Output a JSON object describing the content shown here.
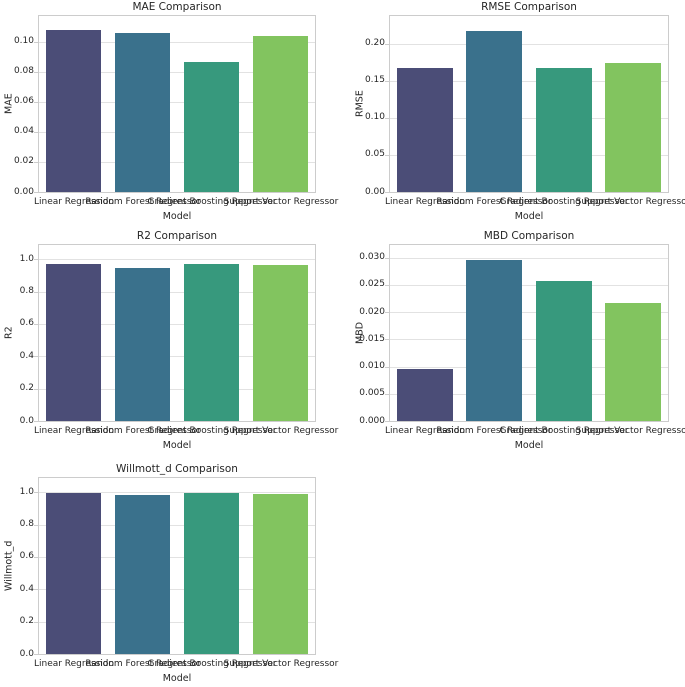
{
  "figure": {
    "background": "#ffffff",
    "text_color": "#262626",
    "grid_color": "#e2e2e2",
    "frame_color": "#cccccc",
    "bar_palette": [
      "#4b4d77",
      "#3a718c",
      "#37997d",
      "#82c45f"
    ]
  },
  "chart_data": [
    {
      "type": "bar",
      "title": "MAE Comparison",
      "xlabel": "Model",
      "ylabel": "MAE",
      "categories": [
        "Linear Regression",
        "Random Forest Regressor",
        "Gradient Boosting Regressor",
        "Support Vector Regressor"
      ],
      "values": [
        0.108,
        0.106,
        0.0865,
        0.1035
      ],
      "ylim": [
        0,
        0.117
      ],
      "yticks": [
        0,
        0.02,
        0.04,
        0.06,
        0.08,
        0.1
      ],
      "ytick_labels": [
        "0.00",
        "0.02",
        "0.04",
        "0.06",
        "0.08",
        "0.10"
      ],
      "grid": true,
      "legend": false
    },
    {
      "type": "bar",
      "title": "RMSE Comparison",
      "xlabel": "Model",
      "ylabel": "RMSE",
      "categories": [
        "Linear Regression",
        "Random Forest Regressor",
        "Gradient Boosting Regressor",
        "Support Vector Regressor"
      ],
      "values": [
        0.168,
        0.2175,
        0.167,
        0.1735
      ],
      "ylim": [
        0,
        0.2375
      ],
      "yticks": [
        0,
        0.05,
        0.1,
        0.15,
        0.2
      ],
      "ytick_labels": [
        "0.00",
        "0.05",
        "0.10",
        "0.15",
        "0.20"
      ],
      "grid": true,
      "legend": false
    },
    {
      "type": "bar",
      "title": "R2 Comparison",
      "xlabel": "Model",
      "ylabel": "R2",
      "categories": [
        "Linear Regression",
        "Random Forest Regressor",
        "Gradient Boosting Regressor",
        "Support Vector Regressor"
      ],
      "values": [
        0.97,
        0.948,
        0.97,
        0.966
      ],
      "ylim": [
        0,
        1.088
      ],
      "yticks": [
        0,
        0.2,
        0.4,
        0.6,
        0.8,
        1.0
      ],
      "ytick_labels": [
        "0.0",
        "0.2",
        "0.4",
        "0.6",
        "0.8",
        "1.0"
      ],
      "grid": true,
      "legend": false
    },
    {
      "type": "bar",
      "title": "MBD Comparison",
      "xlabel": "Model",
      "ylabel": "MBD",
      "categories": [
        "Linear Regression",
        "Random Forest Regressor",
        "Gradient Boosting Regressor",
        "Support Vector Regressor"
      ],
      "values": [
        0.0095,
        0.0295,
        0.0257,
        0.0217
      ],
      "ylim": [
        0,
        0.0323
      ],
      "yticks": [
        0,
        0.005,
        0.01,
        0.015,
        0.02,
        0.025,
        0.03
      ],
      "ytick_labels": [
        "0.000",
        "0.005",
        "0.010",
        "0.015",
        "0.020",
        "0.025",
        "0.030"
      ],
      "grid": true,
      "legend": false
    },
    {
      "type": "bar",
      "title": "Willmott_d Comparison",
      "xlabel": "Model",
      "ylabel": "Willmott_d",
      "categories": [
        "Linear Regression",
        "Random Forest Regressor",
        "Gradient Boosting Regressor",
        "Support Vector Regressor"
      ],
      "values": [
        0.993,
        0.982,
        0.993,
        0.99
      ],
      "ylim": [
        0,
        1.088
      ],
      "yticks": [
        0,
        0.2,
        0.4,
        0.6,
        0.8,
        1.0
      ],
      "ytick_labels": [
        "0.0",
        "0.2",
        "0.4",
        "0.6",
        "0.8",
        "1.0"
      ],
      "grid": true,
      "legend": false
    }
  ]
}
